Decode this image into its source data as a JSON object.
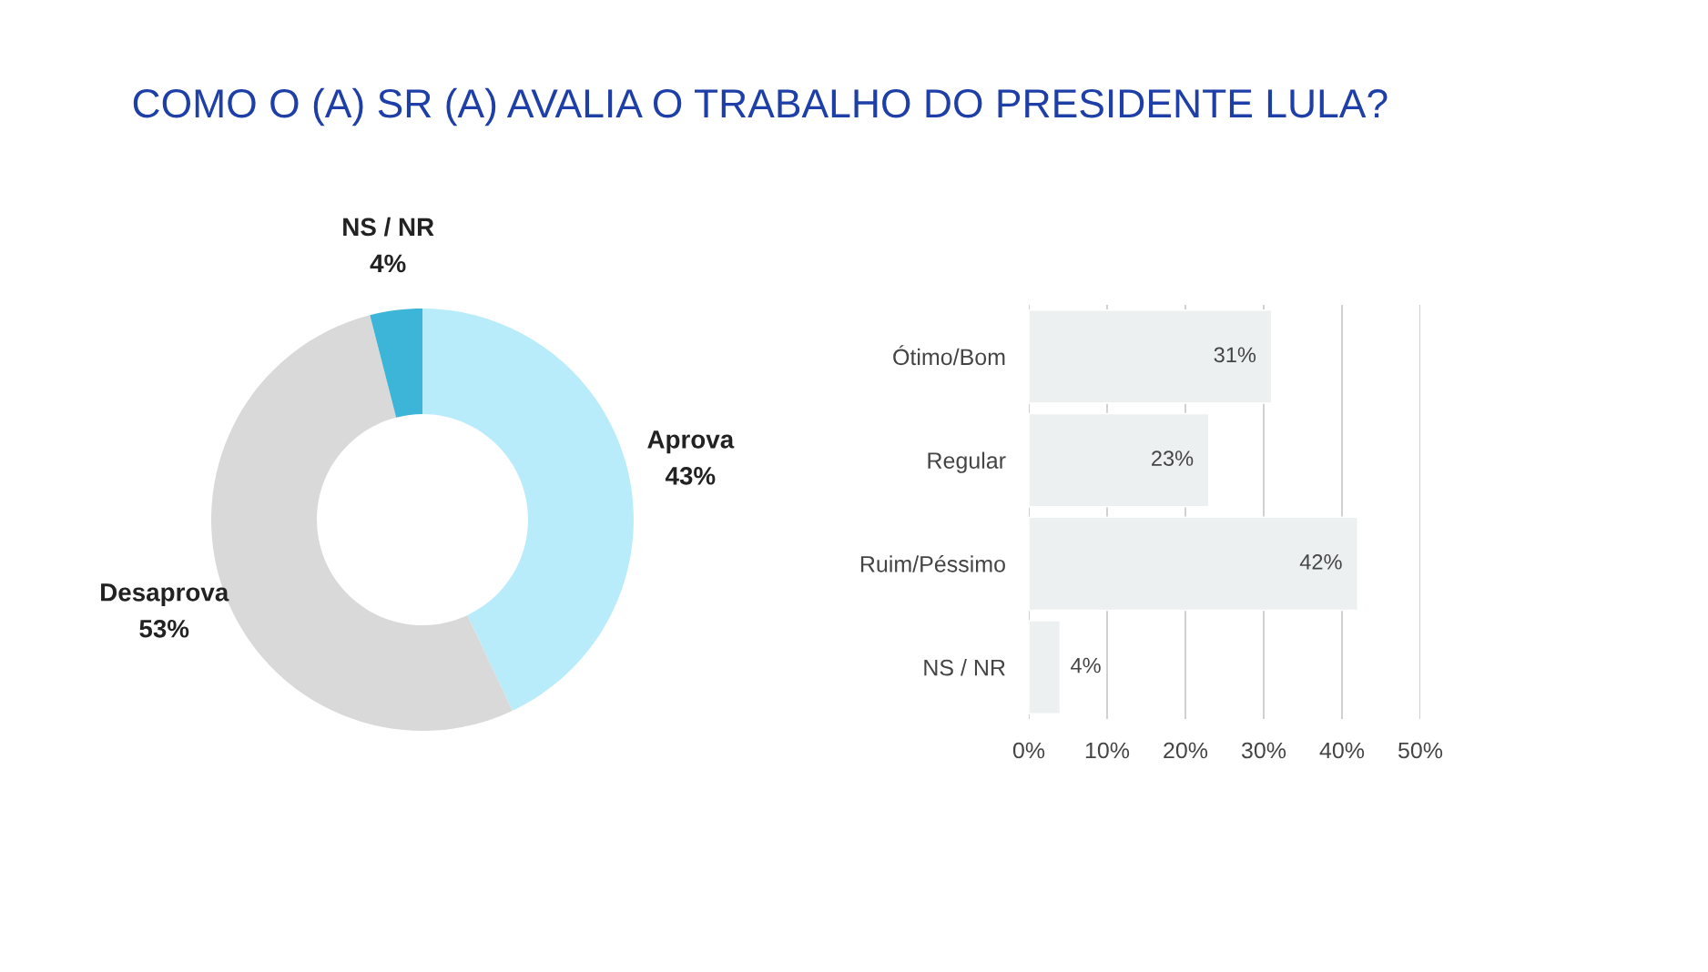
{
  "chart_data": [
    {
      "type": "donut",
      "title": "COMO O (A) SR (A) AVALIA O TRABALHO DO PRESIDENTE LULA?",
      "categories": [
        "Aprova",
        "Desaprova",
        "NS / NR"
      ],
      "values": [
        43,
        53,
        4
      ],
      "colors": [
        "#b9ecfb",
        "#d9d9d9",
        "#3db5d8"
      ],
      "value_labels": [
        "43%",
        "53%",
        "4%"
      ]
    },
    {
      "type": "bar",
      "orientation": "horizontal",
      "categories": [
        "Ótimo/Bom",
        "Regular",
        "Ruim/Péssimo",
        "NS / NR"
      ],
      "values": [
        31,
        23,
        42,
        4
      ],
      "color": "#edf0f0",
      "value_labels": [
        "31%",
        "23%",
        "42%",
        "4%"
      ],
      "xlim": [
        0,
        50
      ],
      "xticks": [
        {
          "value": 0,
          "label": "0%"
        },
        {
          "value": 10,
          "label": "10%"
        },
        {
          "value": 20,
          "label": "20%"
        },
        {
          "value": 30,
          "label": "30%"
        },
        {
          "value": 40,
          "label": "40%"
        },
        {
          "value": 50,
          "label": "50%"
        }
      ],
      "grid": "x"
    }
  ]
}
